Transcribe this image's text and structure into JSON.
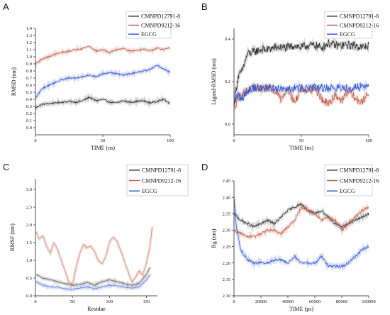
{
  "chart_data": [
    {
      "panel_label": "A",
      "type": "line",
      "xlabel": "TIME (ns)",
      "ylabel": "RMSD (nm)",
      "xlim": [
        0,
        100
      ],
      "ylim": [
        -0.1,
        1.4
      ],
      "x_ticks": [
        0,
        50,
        100
      ],
      "y_ticks": [
        0.0,
        0.1,
        0.2,
        0.3,
        0.4,
        0.5,
        0.6,
        0.7,
        0.8,
        0.9,
        1.0,
        1.1,
        1.2,
        1.3,
        1.4
      ],
      "y_tick_labels": [
        "0.0",
        "0.1",
        "0.2",
        "0.3",
        "0.4",
        "0.5",
        "0.6",
        "0.7",
        "0.8",
        "0.9",
        "1.0",
        "1.1",
        "1.2",
        "1.3",
        "1.4"
      ],
      "grid": false,
      "legend_position": "top-right",
      "series": [
        {
          "name": "CMNPD12791-8",
          "color": "#2b2b2b",
          "x": [
            0,
            5,
            10,
            15,
            20,
            25,
            30,
            35,
            40,
            45,
            50,
            55,
            60,
            65,
            70,
            75,
            80,
            85,
            90,
            95,
            100
          ],
          "values": [
            0.28,
            0.33,
            0.34,
            0.35,
            0.36,
            0.37,
            0.36,
            0.38,
            0.43,
            0.38,
            0.4,
            0.36,
            0.35,
            0.38,
            0.36,
            0.37,
            0.38,
            0.35,
            0.37,
            0.4,
            0.34
          ]
        },
        {
          "name": "CMNPD9212-16",
          "color": "#c05a45",
          "x": [
            0,
            5,
            10,
            15,
            20,
            25,
            30,
            35,
            40,
            45,
            50,
            55,
            60,
            65,
            70,
            75,
            80,
            85,
            90,
            95,
            100
          ],
          "values": [
            0.9,
            0.97,
            1.0,
            1.04,
            1.06,
            1.08,
            1.1,
            1.12,
            1.15,
            1.08,
            1.1,
            1.06,
            1.1,
            1.12,
            1.08,
            1.09,
            1.11,
            1.08,
            1.12,
            1.1,
            1.12
          ]
        },
        {
          "name": "EGCG",
          "color": "#2f55d4",
          "x": [
            0,
            5,
            10,
            15,
            20,
            25,
            30,
            35,
            40,
            45,
            50,
            55,
            60,
            65,
            70,
            75,
            80,
            85,
            90,
            95,
            100
          ],
          "values": [
            0.42,
            0.55,
            0.6,
            0.64,
            0.68,
            0.7,
            0.7,
            0.72,
            0.74,
            0.72,
            0.76,
            0.78,
            0.76,
            0.74,
            0.76,
            0.78,
            0.8,
            0.82,
            0.88,
            0.83,
            0.78
          ]
        }
      ]
    },
    {
      "panel_label": "B",
      "type": "line",
      "xlabel": "TIME (ns)",
      "ylabel": "Ligand-RMSD (nm)",
      "xlim": [
        0,
        100
      ],
      "ylim": [
        -0.05,
        0.45
      ],
      "x_ticks": [
        0,
        50,
        100
      ],
      "y_ticks": [
        0.0,
        0.2,
        0.4
      ],
      "y_tick_labels": [
        "0.0",
        "0.2",
        "0.4"
      ],
      "grid": false,
      "legend_position": "top-right",
      "series": [
        {
          "name": "CMNPD12791-8",
          "color": "#2b2b2b",
          "x": [
            0,
            3,
            6,
            10,
            15,
            20,
            25,
            30,
            35,
            40,
            45,
            50,
            55,
            60,
            65,
            70,
            75,
            80,
            85,
            90,
            95,
            100
          ],
          "values": [
            0.1,
            0.22,
            0.25,
            0.33,
            0.34,
            0.35,
            0.35,
            0.36,
            0.36,
            0.36,
            0.37,
            0.36,
            0.37,
            0.37,
            0.36,
            0.38,
            0.37,
            0.37,
            0.37,
            0.37,
            0.36,
            0.37
          ]
        },
        {
          "name": "CMNPD9212-16",
          "color": "#c05a45",
          "x": [
            0,
            3,
            6,
            10,
            15,
            20,
            25,
            30,
            35,
            40,
            45,
            50,
            55,
            60,
            65,
            70,
            75,
            80,
            85,
            90,
            95,
            100
          ],
          "values": [
            0.08,
            0.12,
            0.14,
            0.16,
            0.17,
            0.17,
            0.17,
            0.16,
            0.12,
            0.17,
            0.1,
            0.17,
            0.16,
            0.17,
            0.12,
            0.09,
            0.14,
            0.11,
            0.16,
            0.12,
            0.1,
            0.15
          ]
        },
        {
          "name": "EGCG",
          "color": "#2f55d4",
          "x": [
            0,
            3,
            6,
            10,
            15,
            20,
            25,
            30,
            35,
            40,
            45,
            50,
            55,
            60,
            65,
            70,
            75,
            80,
            85,
            90,
            95,
            100
          ],
          "values": [
            0.1,
            0.14,
            0.12,
            0.16,
            0.17,
            0.17,
            0.17,
            0.17,
            0.17,
            0.17,
            0.17,
            0.17,
            0.17,
            0.17,
            0.17,
            0.17,
            0.17,
            0.17,
            0.17,
            0.17,
            0.18,
            0.18
          ]
        }
      ]
    },
    {
      "panel_label": "C",
      "type": "line",
      "xlabel": "Residue",
      "ylabel": "RMSF (nm)",
      "xlim": [
        0,
        165
      ],
      "ylim": [
        0,
        3.3
      ],
      "x_ticks": [
        0,
        50,
        100,
        150
      ],
      "y_ticks": [
        0.0,
        0.5,
        1.0,
        1.5,
        2.0,
        2.5,
        3.0
      ],
      "y_tick_labels": [
        "0.0",
        "0.5",
        "1.0",
        "1.5",
        "2.0",
        "2.5",
        "3.0"
      ],
      "grid": false,
      "legend_position": "top-right",
      "series": [
        {
          "name": "CMNPD12791-8",
          "color": "#2b2b2b",
          "x": [
            1,
            10,
            20,
            30,
            40,
            50,
            60,
            70,
            80,
            90,
            100,
            110,
            120,
            130,
            140,
            150,
            155
          ],
          "values": [
            0.6,
            0.5,
            0.45,
            0.4,
            0.35,
            0.3,
            0.32,
            0.38,
            0.3,
            0.4,
            0.45,
            0.4,
            0.35,
            0.3,
            0.35,
            0.6,
            0.8
          ]
        },
        {
          "name": "CMNPD9212-16",
          "color": "#c05a45",
          "x": [
            1,
            5,
            10,
            15,
            20,
            25,
            30,
            35,
            40,
            45,
            50,
            55,
            60,
            65,
            70,
            75,
            80,
            85,
            90,
            95,
            100,
            105,
            110,
            115,
            120,
            125,
            130,
            135,
            140,
            145,
            150,
            155,
            158
          ],
          "values": [
            1.8,
            1.6,
            1.7,
            1.4,
            1.2,
            1.5,
            1.3,
            1.0,
            0.7,
            0.4,
            0.3,
            0.8,
            1.2,
            1.45,
            1.35,
            1.4,
            1.25,
            1.0,
            0.9,
            1.1,
            1.5,
            1.65,
            1.55,
            1.3,
            1.0,
            0.7,
            0.4,
            0.5,
            0.7,
            0.6,
            0.9,
            1.4,
            1.95
          ]
        },
        {
          "name": "EGCG",
          "color": "#2f55d4",
          "x": [
            1,
            10,
            20,
            30,
            40,
            50,
            60,
            70,
            80,
            90,
            100,
            110,
            120,
            130,
            140,
            150,
            155
          ],
          "values": [
            0.4,
            0.3,
            0.25,
            0.25,
            0.2,
            0.18,
            0.22,
            0.25,
            0.2,
            0.25,
            0.3,
            0.28,
            0.25,
            0.22,
            0.25,
            0.45,
            0.6
          ]
        }
      ]
    },
    {
      "panel_label": "D",
      "type": "line",
      "xlabel": "TIME (ps)",
      "ylabel": "Rg (nm)",
      "xlim": [
        0,
        100000
      ],
      "ylim": [
        2.1,
        2.45
      ],
      "x_ticks": [
        0,
        20000,
        40000,
        60000,
        80000,
        100000
      ],
      "x_tick_labels": [
        "0",
        "20000",
        "40000",
        "60000",
        "80000",
        "100000"
      ],
      "y_ticks": [
        2.1,
        2.15,
        2.2,
        2.25,
        2.3,
        2.35,
        2.4,
        2.45
      ],
      "y_tick_labels": [
        "2.10",
        "2.15",
        "2.20",
        "2.25",
        "2.30",
        "2.35",
        "2.40",
        "2.45"
      ],
      "grid": false,
      "legend_position": "top-right",
      "series": [
        {
          "name": "CMNPD12791-8",
          "color": "#2b2b2b",
          "x": [
            0,
            5000,
            10000,
            15000,
            20000,
            25000,
            30000,
            35000,
            40000,
            45000,
            50000,
            55000,
            60000,
            65000,
            70000,
            75000,
            80000,
            85000,
            90000,
            95000,
            100000
          ],
          "values": [
            2.35,
            2.33,
            2.32,
            2.31,
            2.32,
            2.33,
            2.32,
            2.34,
            2.36,
            2.37,
            2.38,
            2.36,
            2.35,
            2.36,
            2.34,
            2.32,
            2.31,
            2.32,
            2.33,
            2.34,
            2.35
          ]
        },
        {
          "name": "CMNPD9212-16",
          "color": "#c05a45",
          "x": [
            0,
            5000,
            10000,
            15000,
            20000,
            25000,
            30000,
            35000,
            40000,
            45000,
            50000,
            55000,
            60000,
            65000,
            70000,
            75000,
            80000,
            85000,
            90000,
            95000,
            100000
          ],
          "values": [
            2.3,
            2.29,
            2.28,
            2.28,
            2.29,
            2.3,
            2.3,
            2.29,
            2.31,
            2.33,
            2.37,
            2.36,
            2.35,
            2.33,
            2.34,
            2.33,
            2.3,
            2.32,
            2.34,
            2.36,
            2.37
          ]
        },
        {
          "name": "EGCG",
          "color": "#2f55d4",
          "x": [
            0,
            2000,
            5000,
            10000,
            15000,
            20000,
            25000,
            30000,
            35000,
            40000,
            45000,
            50000,
            55000,
            60000,
            65000,
            70000,
            75000,
            80000,
            85000,
            90000,
            95000,
            100000
          ],
          "values": [
            2.4,
            2.3,
            2.24,
            2.21,
            2.2,
            2.2,
            2.2,
            2.21,
            2.21,
            2.2,
            2.22,
            2.2,
            2.2,
            2.2,
            2.22,
            2.19,
            2.19,
            2.19,
            2.2,
            2.22,
            2.24,
            2.25
          ]
        }
      ]
    }
  ]
}
